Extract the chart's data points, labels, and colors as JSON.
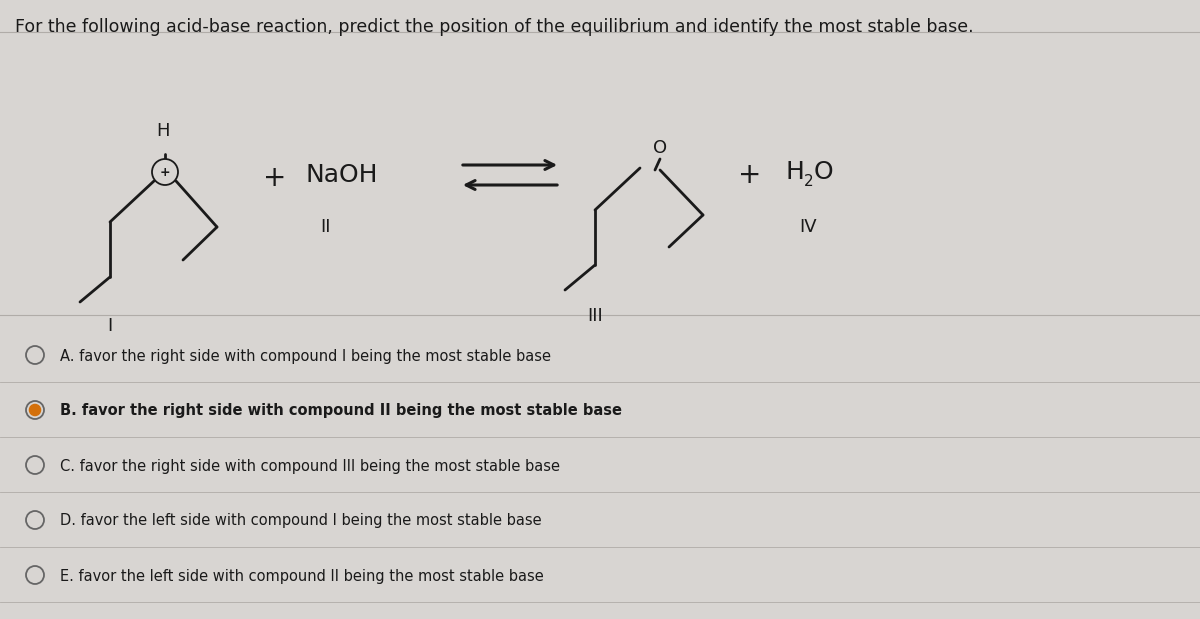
{
  "title": "For the following acid-base reaction, predict the position of the equilibrium and identify the most stable base.",
  "bg_color": "#d8d5d2",
  "text_color": "#1a1a1a",
  "bond_color": "#1a1a1a",
  "options": [
    {
      "label": "A. favor the right side with compound I being the most stable base",
      "selected": false
    },
    {
      "label": "B. favor the right side with compound II being the most stable base",
      "selected": true
    },
    {
      "label": "C. favor the right side with compound III being the most stable base",
      "selected": false
    },
    {
      "label": "D. favor the left side with compound I being the most stable base",
      "selected": false
    },
    {
      "label": "E. favor the left side with compound II being the most stable base",
      "selected": false
    }
  ],
  "option_font_size": 10.5,
  "title_font_size": 12.5,
  "label_font_size": 13,
  "chem_font_size": 14,
  "figwidth": 12.0,
  "figheight": 6.19
}
